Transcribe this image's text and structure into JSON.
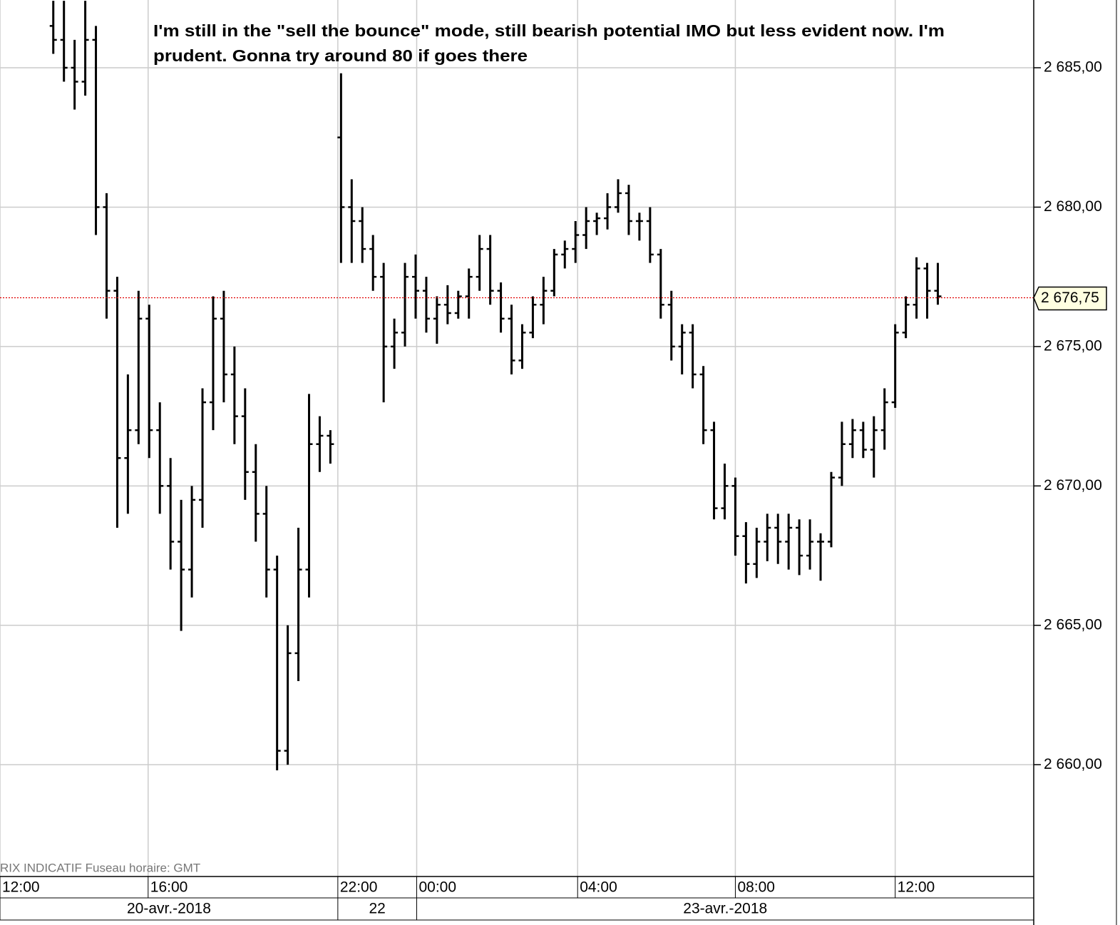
{
  "chart_data": {
    "type": "ohlc",
    "annotation": [
      "I'm still in the \"sell the bounce\" mode, still bearish potential IMO but less evident now. I'm",
      "prudent. Gonna try around 80 if goes there"
    ],
    "footer": "RIX INDICATIF   Fuseau horaire: GMT",
    "color": "#000000",
    "grid": true,
    "xlim": [
      0,
      97
    ],
    "ylim": [
      2655.99,
      2687.43
    ],
    "yticks": [
      {
        "value": 2660,
        "label": "2 660,00"
      },
      {
        "value": 2665,
        "label": "2 665,00"
      },
      {
        "value": 2670,
        "label": "2 670,00"
      },
      {
        "value": 2675,
        "label": "2 675,00"
      },
      {
        "value": 2680,
        "label": "2 680,00"
      },
      {
        "value": 2685,
        "label": "2 685,00"
      }
    ],
    "xticks": [
      {
        "value": 0,
        "label": "12:00"
      },
      {
        "value": 13.9,
        "label": "16:00"
      },
      {
        "value": 31.7,
        "label": "22:00"
      },
      {
        "value": 39.1,
        "label": "00:00"
      },
      {
        "value": 54.2,
        "label": "04:00"
      },
      {
        "value": 69,
        "label": "08:00"
      },
      {
        "value": 84,
        "label": "12:00"
      }
    ],
    "date_spans": [
      {
        "label": "20-avr.-2018",
        "start": 0,
        "end": 31.7
      },
      {
        "label": "22",
        "start": 31.7,
        "end": 39.1
      },
      {
        "label": "23-avr.-2018",
        "start": 39.1,
        "end": 97
      }
    ],
    "last_price": {
      "value": 2676.75,
      "label": "2 676,75",
      "color": "#e00000"
    },
    "x": [
      5,
      6,
      7,
      8,
      9,
      10,
      11,
      12,
      13,
      14,
      15,
      16,
      17,
      18,
      19,
      20,
      21,
      22,
      23,
      24,
      25,
      26,
      27,
      28,
      29,
      30,
      31,
      32,
      33,
      34,
      35,
      36,
      37,
      38,
      39,
      40,
      41,
      42,
      43,
      44,
      45,
      46,
      47,
      48,
      49,
      50,
      51,
      52,
      53,
      54,
      55,
      56,
      57,
      58,
      59,
      60,
      61,
      62,
      63,
      64,
      65,
      66,
      67,
      68,
      69,
      70,
      71,
      72,
      73,
      74,
      75,
      76,
      77,
      78,
      79,
      80,
      81,
      82,
      83,
      84,
      85,
      86,
      87,
      88
    ],
    "open": [
      2686.5,
      2686,
      2685,
      2684.5,
      2686,
      2680,
      2677,
      2671,
      2672,
      2676,
      2672,
      2670,
      2668,
      2667,
      2669.5,
      2673,
      2676,
      2674,
      2672.5,
      2670.5,
      2669,
      2667,
      2660.5,
      2664,
      2667,
      2671.5,
      2671.8,
      2682.5,
      2680,
      2679.5,
      2678.5,
      2677.5,
      2675,
      2675.5,
      2677.5,
      2677,
      2676,
      2676.5,
      2676.2,
      2676.8,
      2677.5,
      2678.5,
      2677,
      2676,
      2674.5,
      2675.5,
      2676.5,
      2677,
      2678.3,
      2678.5,
      2679,
      2679.5,
      2679.6,
      2680,
      2680.5,
      2679.5,
      2679.5,
      2678.3,
      2676.5,
      2675,
      2675.5,
      2674,
      2672,
      2669.2,
      2670,
      2668.2,
      2667.2,
      2668,
      2668.5,
      2668,
      2668.5,
      2667.5,
      2668,
      2668,
      2670.3,
      2671.5,
      2672,
      2671.3,
      2672,
      2673,
      2675.5,
      2676.5,
      2677.8,
      2677
    ],
    "high": [
      2687.4,
      2687.4,
      2686,
      2687.4,
      2686.5,
      2680.5,
      2677.5,
      2674,
      2677,
      2676.5,
      2673,
      2671,
      2669.5,
      2670,
      2673.5,
      2676.8,
      2677,
      2675,
      2673.5,
      2671.5,
      2670,
      2667.5,
      2665,
      2668.5,
      2673.3,
      2672.5,
      2672,
      2684.8,
      2681,
      2680,
      2679,
      2678,
      2676,
      2678,
      2678.3,
      2677.5,
      2676.8,
      2677.2,
      2677,
      2677.8,
      2679,
      2679,
      2677.3,
      2676.5,
      2675.8,
      2676.8,
      2677.5,
      2678.5,
      2678.8,
      2679.5,
      2680,
      2679.8,
      2680.5,
      2681,
      2680.8,
      2679.8,
      2680,
      2678.5,
      2677,
      2675.8,
      2675.8,
      2674.3,
      2672.3,
      2670.8,
      2670.3,
      2668.7,
      2668.5,
      2669,
      2669,
      2669,
      2668.8,
      2668.8,
      2668.3,
      2670.5,
      2672.3,
      2672.4,
      2672.3,
      2672.5,
      2673.5,
      2675.8,
      2676.8,
      2678.2,
      2678,
      2678
    ],
    "low": [
      2685.5,
      2684.5,
      2683.5,
      2684,
      2679,
      2676,
      2668.5,
      2669,
      2671.5,
      2671,
      2669,
      2667,
      2664.8,
      2666,
      2668.5,
      2672,
      2673,
      2671.5,
      2669.5,
      2668,
      2666,
      2659.8,
      2660,
      2663,
      2666,
      2670.5,
      2670.8,
      2678,
      2678,
      2678,
      2677,
      2673,
      2674.2,
      2675,
      2676,
      2675.5,
      2675.1,
      2675.8,
      2676,
      2676,
      2677,
      2676.5,
      2675.5,
      2674,
      2674.2,
      2675.3,
      2675.8,
      2676.8,
      2677.8,
      2678,
      2678.5,
      2679,
      2679.2,
      2679.8,
      2679,
      2678.8,
      2678,
      2676,
      2674.5,
      2674,
      2673.5,
      2671.5,
      2668.8,
      2668.8,
      2667.5,
      2666.5,
      2666.7,
      2667.3,
      2667.2,
      2667,
      2666.8,
      2667,
      2666.6,
      2667.8,
      2670,
      2671,
      2671,
      2670.3,
      2671.3,
      2672.8,
      2675.3,
      2676,
      2676,
      2676.5
    ],
    "close": [
      2686,
      2685,
      2684.5,
      2686,
      2680,
      2677,
      2671,
      2672,
      2676,
      2672,
      2670,
      2668,
      2667,
      2669.5,
      2673,
      2676,
      2674,
      2672.5,
      2670.5,
      2669,
      2667,
      2660.5,
      2664,
      2667,
      2671.5,
      2671.8,
      2671.5,
      2680,
      2679.5,
      2678.5,
      2677.5,
      2675,
      2675.5,
      2677.5,
      2677,
      2676,
      2676.5,
      2676.2,
      2676.8,
      2677.5,
      2678.5,
      2677,
      2676,
      2674.5,
      2675.5,
      2676.5,
      2677,
      2678.3,
      2678.5,
      2679,
      2679.5,
      2679.6,
      2680,
      2680.5,
      2679.5,
      2679.5,
      2678.3,
      2676.5,
      2675,
      2675.5,
      2674,
      2672,
      2669.2,
      2670,
      2668.2,
      2667.2,
      2668,
      2668.5,
      2668,
      2668.5,
      2667.5,
      2668,
      2668,
      2670.3,
      2671.5,
      2672,
      2671.3,
      2672,
      2673,
      2675.5,
      2676.5,
      2677.8,
      2677,
      2676.8
    ]
  }
}
